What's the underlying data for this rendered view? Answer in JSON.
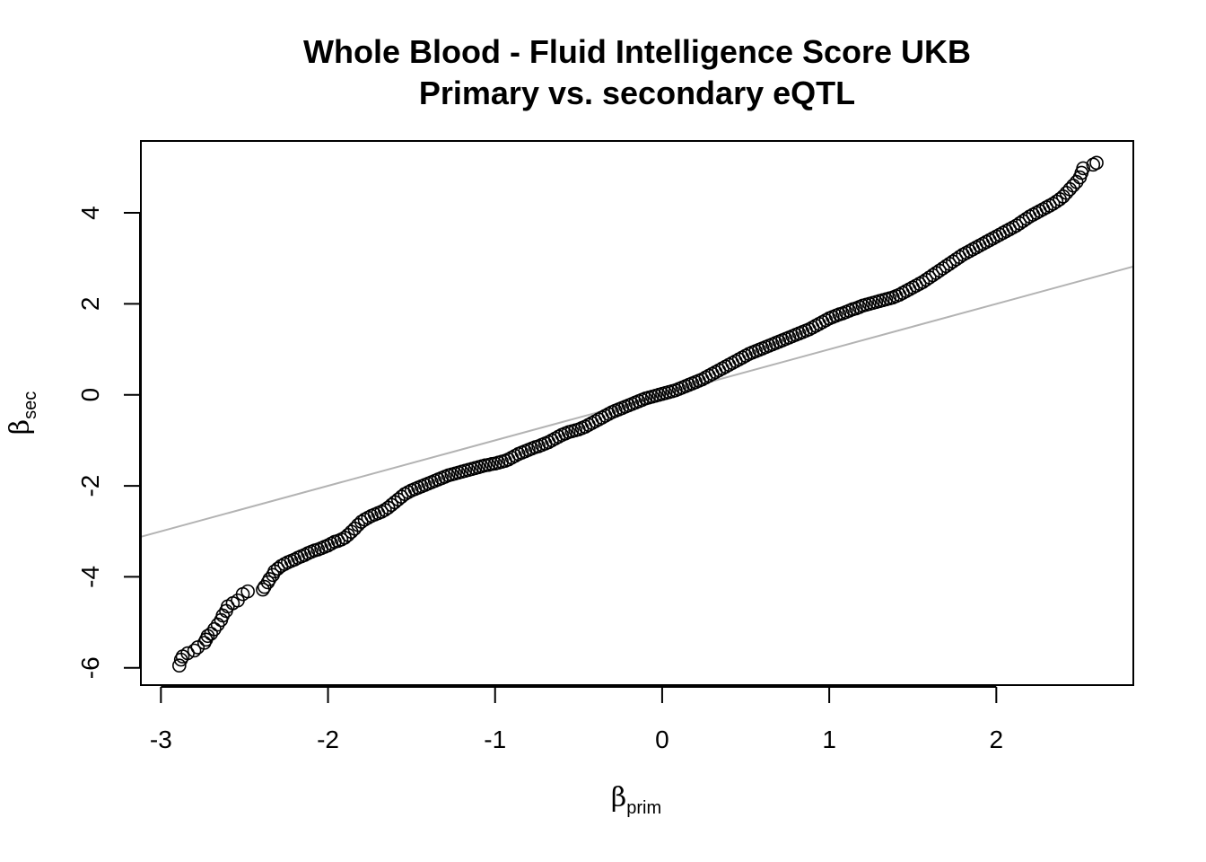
{
  "chart_data": {
    "type": "scatter",
    "title": "Whole Blood - Fluid Intelligence Score UKB",
    "subtitle": "Primary vs. secondary eQTL",
    "xlabel": {
      "symbol": "β",
      "subscript": "prim"
    },
    "ylabel": {
      "symbol": "β",
      "subscript": "sec"
    },
    "xlim": [
      -3.12,
      2.82
    ],
    "ylim": [
      -6.38,
      5.58
    ],
    "x_ticks": [
      {
        "value": -3,
        "label": "-3"
      },
      {
        "value": -2,
        "label": "-2"
      },
      {
        "value": -1,
        "label": "-1"
      },
      {
        "value": 0,
        "label": "0"
      },
      {
        "value": 1,
        "label": "1"
      },
      {
        "value": 2,
        "label": "2"
      }
    ],
    "y_ticks": [
      {
        "value": -6,
        "label": "-6"
      },
      {
        "value": -4,
        "label": "-4"
      },
      {
        "value": -2,
        "label": "-2"
      },
      {
        "value": 0,
        "label": "0"
      },
      {
        "value": 2,
        "label": "2"
      },
      {
        "value": 4,
        "label": "4"
      }
    ],
    "grid": false,
    "marker": "open-circle",
    "point_color": "#000000",
    "reference_line": {
      "slope": 1,
      "intercept": 0,
      "color": "#b3b3b3"
    },
    "points": [
      [
        -2.89,
        -5.95
      ],
      [
        -2.88,
        -5.82
      ],
      [
        -2.87,
        -5.75
      ],
      [
        -2.84,
        -5.68
      ],
      [
        -2.8,
        -5.62
      ],
      [
        -2.78,
        -5.55
      ],
      [
        -2.74,
        -5.45
      ],
      [
        -2.73,
        -5.38
      ],
      [
        -2.72,
        -5.3
      ],
      [
        -2.7,
        -5.25
      ],
      [
        -2.68,
        -5.15
      ],
      [
        -2.66,
        -5.05
      ],
      [
        -2.64,
        -4.95
      ],
      [
        -2.63,
        -4.85
      ],
      [
        -2.61,
        -4.75
      ],
      [
        -2.6,
        -4.65
      ],
      [
        -2.57,
        -4.58
      ],
      [
        -2.54,
        -4.52
      ],
      [
        -2.51,
        -4.38
      ],
      [
        -2.48,
        -4.32
      ],
      [
        -2.39,
        -4.28
      ],
      [
        -2.38,
        -4.22
      ],
      [
        -2.36,
        -4.12
      ],
      [
        -2.35,
        -4.05
      ],
      [
        -2.33,
        -3.96
      ],
      [
        -2.32,
        -3.88
      ],
      [
        -2.3,
        -3.82
      ],
      [
        -2.28,
        -3.76
      ],
      [
        -2.26,
        -3.72
      ],
      [
        -2.24,
        -3.68
      ],
      [
        -2.22,
        -3.65
      ],
      [
        -2.2,
        -3.62
      ],
      [
        -2.18,
        -3.58
      ],
      [
        -2.16,
        -3.55
      ],
      [
        -2.14,
        -3.52
      ],
      [
        -2.12,
        -3.48
      ],
      [
        -2.1,
        -3.45
      ],
      [
        -2.08,
        -3.42
      ],
      [
        -2.06,
        -3.4
      ],
      [
        -2.04,
        -3.37
      ],
      [
        -2.02,
        -3.34
      ],
      [
        -2.0,
        -3.31
      ],
      [
        -1.98,
        -3.27
      ],
      [
        -1.96,
        -3.23
      ],
      [
        -1.94,
        -3.21
      ],
      [
        -1.92,
        -3.18
      ],
      [
        -1.9,
        -3.14
      ],
      [
        -1.88,
        -3.08
      ],
      [
        -1.86,
        -3.01
      ],
      [
        -1.84,
        -2.94
      ],
      [
        -1.82,
        -2.86
      ],
      [
        -1.8,
        -2.79
      ],
      [
        -1.78,
        -2.74
      ],
      [
        -1.76,
        -2.7
      ],
      [
        -1.74,
        -2.66
      ],
      [
        -1.72,
        -2.63
      ],
      [
        -1.7,
        -2.6
      ],
      [
        -1.68,
        -2.57
      ],
      [
        -1.66,
        -2.53
      ],
      [
        -1.64,
        -2.48
      ],
      [
        -1.62,
        -2.42
      ],
      [
        -1.6,
        -2.36
      ],
      [
        -1.58,
        -2.3
      ],
      [
        -1.56,
        -2.24
      ],
      [
        -1.54,
        -2.18
      ],
      [
        -1.52,
        -2.14
      ],
      [
        -1.5,
        -2.1
      ],
      [
        -1.48,
        -2.07
      ],
      [
        -1.46,
        -2.04
      ],
      [
        -1.44,
        -2.01
      ],
      [
        -1.42,
        -1.98
      ],
      [
        -1.4,
        -1.95
      ],
      [
        -1.38,
        -1.92
      ],
      [
        -1.36,
        -1.89
      ],
      [
        -1.34,
        -1.86
      ],
      [
        -1.32,
        -1.83
      ],
      [
        -1.3,
        -1.8
      ],
      [
        -1.28,
        -1.77
      ],
      [
        -1.26,
        -1.75
      ],
      [
        -1.24,
        -1.73
      ],
      [
        -1.22,
        -1.71
      ],
      [
        -1.2,
        -1.69
      ],
      [
        -1.18,
        -1.67
      ],
      [
        -1.16,
        -1.65
      ],
      [
        -1.14,
        -1.63
      ],
      [
        -1.12,
        -1.61
      ],
      [
        -1.1,
        -1.59
      ],
      [
        -1.08,
        -1.57
      ],
      [
        -1.06,
        -1.55
      ],
      [
        -1.04,
        -1.54
      ],
      [
        -1.02,
        -1.52
      ],
      [
        -1.0,
        -1.51
      ],
      [
        -0.98,
        -1.49
      ],
      [
        -0.96,
        -1.47
      ],
      [
        -0.94,
        -1.45
      ],
      [
        -0.92,
        -1.42
      ],
      [
        -0.9,
        -1.38
      ],
      [
        -0.88,
        -1.34
      ],
      [
        -0.86,
        -1.3
      ],
      [
        -0.84,
        -1.27
      ],
      [
        -0.82,
        -1.24
      ],
      [
        -0.8,
        -1.21
      ],
      [
        -0.78,
        -1.18
      ],
      [
        -0.76,
        -1.15
      ],
      [
        -0.74,
        -1.13
      ],
      [
        -0.72,
        -1.1
      ],
      [
        -0.7,
        -1.07
      ],
      [
        -0.68,
        -1.04
      ],
      [
        -0.66,
        -1.0
      ],
      [
        -0.64,
        -0.96
      ],
      [
        -0.62,
        -0.92
      ],
      [
        -0.6,
        -0.88
      ],
      [
        -0.58,
        -0.85
      ],
      [
        -0.56,
        -0.82
      ],
      [
        -0.54,
        -0.8
      ],
      [
        -0.52,
        -0.78
      ],
      [
        -0.5,
        -0.76
      ],
      [
        -0.48,
        -0.73
      ],
      [
        -0.46,
        -0.7
      ],
      [
        -0.44,
        -0.66
      ],
      [
        -0.42,
        -0.62
      ],
      [
        -0.4,
        -0.58
      ],
      [
        -0.38,
        -0.54
      ],
      [
        -0.36,
        -0.5
      ],
      [
        -0.34,
        -0.46
      ],
      [
        -0.32,
        -0.42
      ],
      [
        -0.3,
        -0.38
      ],
      [
        -0.28,
        -0.35
      ],
      [
        -0.26,
        -0.32
      ],
      [
        -0.24,
        -0.29
      ],
      [
        -0.22,
        -0.26
      ],
      [
        -0.2,
        -0.23
      ],
      [
        -0.18,
        -0.2
      ],
      [
        -0.16,
        -0.17
      ],
      [
        -0.14,
        -0.14
      ],
      [
        -0.12,
        -0.11
      ],
      [
        -0.1,
        -0.08
      ],
      [
        -0.08,
        -0.06
      ],
      [
        -0.06,
        -0.04
      ],
      [
        -0.04,
        -0.02
      ],
      [
        -0.02,
        0.0
      ],
      [
        0.0,
        0.02
      ],
      [
        0.02,
        0.04
      ],
      [
        0.04,
        0.06
      ],
      [
        0.06,
        0.08
      ],
      [
        0.08,
        0.1
      ],
      [
        0.1,
        0.13
      ],
      [
        0.12,
        0.16
      ],
      [
        0.14,
        0.19
      ],
      [
        0.16,
        0.22
      ],
      [
        0.18,
        0.25
      ],
      [
        0.2,
        0.28
      ],
      [
        0.22,
        0.31
      ],
      [
        0.24,
        0.34
      ],
      [
        0.26,
        0.38
      ],
      [
        0.28,
        0.42
      ],
      [
        0.3,
        0.46
      ],
      [
        0.32,
        0.5
      ],
      [
        0.34,
        0.54
      ],
      [
        0.36,
        0.58
      ],
      [
        0.38,
        0.62
      ],
      [
        0.4,
        0.66
      ],
      [
        0.42,
        0.7
      ],
      [
        0.44,
        0.74
      ],
      [
        0.46,
        0.78
      ],
      [
        0.48,
        0.82
      ],
      [
        0.5,
        0.86
      ],
      [
        0.52,
        0.9
      ],
      [
        0.54,
        0.93
      ],
      [
        0.56,
        0.96
      ],
      [
        0.58,
        0.99
      ],
      [
        0.6,
        1.02
      ],
      [
        0.62,
        1.05
      ],
      [
        0.64,
        1.08
      ],
      [
        0.66,
        1.11
      ],
      [
        0.68,
        1.14
      ],
      [
        0.7,
        1.17
      ],
      [
        0.72,
        1.2
      ],
      [
        0.74,
        1.23
      ],
      [
        0.76,
        1.26
      ],
      [
        0.78,
        1.29
      ],
      [
        0.8,
        1.32
      ],
      [
        0.82,
        1.35
      ],
      [
        0.84,
        1.38
      ],
      [
        0.86,
        1.41
      ],
      [
        0.88,
        1.44
      ],
      [
        0.9,
        1.48
      ],
      [
        0.92,
        1.52
      ],
      [
        0.94,
        1.56
      ],
      [
        0.96,
        1.6
      ],
      [
        0.98,
        1.64
      ],
      [
        1.0,
        1.68
      ],
      [
        1.02,
        1.71
      ],
      [
        1.04,
        1.74
      ],
      [
        1.06,
        1.77
      ],
      [
        1.08,
        1.79
      ],
      [
        1.1,
        1.82
      ],
      [
        1.12,
        1.85
      ],
      [
        1.14,
        1.88
      ],
      [
        1.16,
        1.9
      ],
      [
        1.18,
        1.93
      ],
      [
        1.2,
        1.96
      ],
      [
        1.22,
        1.98
      ],
      [
        1.24,
        2.0
      ],
      [
        1.26,
        2.02
      ],
      [
        1.28,
        2.04
      ],
      [
        1.3,
        2.06
      ],
      [
        1.32,
        2.08
      ],
      [
        1.34,
        2.1
      ],
      [
        1.36,
        2.12
      ],
      [
        1.38,
        2.14
      ],
      [
        1.4,
        2.17
      ],
      [
        1.42,
        2.2
      ],
      [
        1.44,
        2.24
      ],
      [
        1.46,
        2.28
      ],
      [
        1.48,
        2.32
      ],
      [
        1.5,
        2.36
      ],
      [
        1.52,
        2.4
      ],
      [
        1.54,
        2.44
      ],
      [
        1.56,
        2.48
      ],
      [
        1.58,
        2.53
      ],
      [
        1.6,
        2.58
      ],
      [
        1.62,
        2.63
      ],
      [
        1.64,
        2.68
      ],
      [
        1.66,
        2.73
      ],
      [
        1.68,
        2.78
      ],
      [
        1.7,
        2.83
      ],
      [
        1.72,
        2.88
      ],
      [
        1.74,
        2.93
      ],
      [
        1.76,
        2.98
      ],
      [
        1.78,
        3.03
      ],
      [
        1.8,
        3.08
      ],
      [
        1.82,
        3.12
      ],
      [
        1.84,
        3.16
      ],
      [
        1.86,
        3.2
      ],
      [
        1.88,
        3.24
      ],
      [
        1.9,
        3.28
      ],
      [
        1.92,
        3.32
      ],
      [
        1.94,
        3.36
      ],
      [
        1.96,
        3.4
      ],
      [
        1.98,
        3.44
      ],
      [
        2.0,
        3.48
      ],
      [
        2.02,
        3.52
      ],
      [
        2.04,
        3.56
      ],
      [
        2.06,
        3.6
      ],
      [
        2.08,
        3.64
      ],
      [
        2.1,
        3.68
      ],
      [
        2.12,
        3.72
      ],
      [
        2.14,
        3.77
      ],
      [
        2.16,
        3.82
      ],
      [
        2.18,
        3.87
      ],
      [
        2.2,
        3.92
      ],
      [
        2.22,
        3.96
      ],
      [
        2.24,
        4.0
      ],
      [
        2.26,
        4.04
      ],
      [
        2.28,
        4.08
      ],
      [
        2.3,
        4.12
      ],
      [
        2.32,
        4.16
      ],
      [
        2.34,
        4.2
      ],
      [
        2.36,
        4.25
      ],
      [
        2.38,
        4.3
      ],
      [
        2.4,
        4.36
      ],
      [
        2.42,
        4.44
      ],
      [
        2.44,
        4.52
      ],
      [
        2.46,
        4.6
      ],
      [
        2.48,
        4.68
      ],
      [
        2.5,
        4.78
      ],
      [
        2.51,
        4.88
      ],
      [
        2.52,
        4.98
      ],
      [
        2.58,
        5.06
      ],
      [
        2.6,
        5.1
      ]
    ]
  }
}
